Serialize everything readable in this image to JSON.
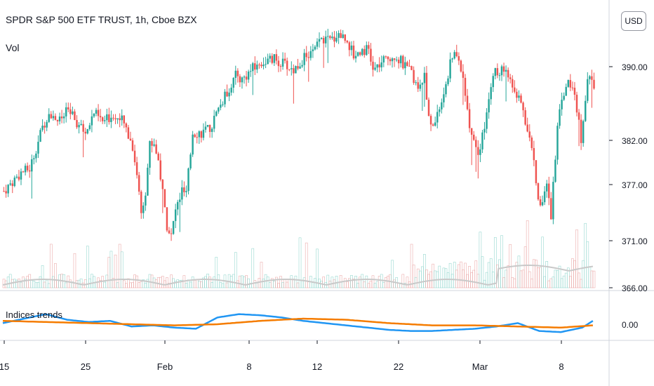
{
  "header": {
    "title": "SPDR S&P 500 ETF TRUST, 1h, Cboe BZX",
    "volume_label": "Vol",
    "indicator_label": "Indices trends",
    "currency": "USD"
  },
  "colors": {
    "up": "#26a69a",
    "down": "#ef5350",
    "trend_blue": "#2196f3",
    "trend_orange": "#f57c00",
    "grey_line": "#c9c9c9",
    "grid": "#e6e6e6"
  },
  "chart_data": [
    {
      "type": "candlestick",
      "price_axis": {
        "ticks": [
          "390.00",
          "382.00",
          "377.00",
          "371.00",
          "366.00"
        ],
        "ylim": [
          366,
          394.5
        ]
      },
      "x_axis": {
        "ticks": [
          "15",
          "25",
          "Feb",
          "8",
          "12",
          "22",
          "Mar",
          "8"
        ]
      },
      "close_path": [
        [
          0,
          376.5
        ],
        [
          8,
          378.5
        ],
        [
          12,
          378.9
        ],
        [
          18,
          383.4
        ],
        [
          21,
          385.1
        ],
        [
          26,
          384.1
        ],
        [
          30,
          385.3
        ],
        [
          34,
          383.8
        ],
        [
          38,
          382.8
        ],
        [
          42,
          385.0
        ],
        [
          46,
          384.0
        ],
        [
          51,
          384.8
        ],
        [
          55,
          384.1
        ],
        [
          57,
          383.3
        ],
        [
          60,
          381.3
        ],
        [
          62,
          378.4
        ],
        [
          64,
          374.2
        ],
        [
          66,
          376.6
        ],
        [
          68,
          381.6
        ],
        [
          70,
          381.7
        ],
        [
          72,
          379.8
        ],
        [
          74,
          376.3
        ],
        [
          76,
          372.8
        ],
        [
          78,
          371.6
        ],
        [
          80,
          374.4
        ],
        [
          83,
          376.5
        ],
        [
          85,
          376.1
        ],
        [
          88,
          382.9
        ],
        [
          92,
          382.8
        ],
        [
          96,
          383.2
        ],
        [
          100,
          385.4
        ],
        [
          104,
          387.2
        ],
        [
          108,
          389.0
        ],
        [
          111,
          388.6
        ],
        [
          116,
          389.8
        ],
        [
          121,
          390.5
        ],
        [
          126,
          390.8
        ],
        [
          131,
          390.2
        ],
        [
          135,
          389.6
        ],
        [
          140,
          391.0
        ],
        [
          144,
          391.5
        ],
        [
          148,
          393.0
        ],
        [
          152,
          392.8
        ],
        [
          156,
          393.6
        ],
        [
          160,
          392.9
        ],
        [
          163,
          391.2
        ],
        [
          167,
          391.9
        ],
        [
          170,
          391.8
        ],
        [
          172,
          389.5
        ],
        [
          175,
          390.2
        ],
        [
          179,
          390.9
        ],
        [
          182,
          391.3
        ],
        [
          185,
          390.6
        ],
        [
          187,
          389.9
        ],
        [
          190,
          389.3
        ],
        [
          193,
          387.4
        ],
        [
          196,
          388.9
        ],
        [
          198,
          384.2
        ],
        [
          200,
          383.8
        ],
        [
          202,
          384.7
        ],
        [
          205,
          387.1
        ],
        [
          208,
          390.2
        ],
        [
          210,
          391.6
        ],
        [
          212,
          390.8
        ],
        [
          215,
          387.4
        ],
        [
          217,
          383.1
        ],
        [
          219,
          382.4
        ],
        [
          221,
          380.6
        ],
        [
          223,
          382.5
        ],
        [
          225,
          384.8
        ],
        [
          227,
          387.6
        ],
        [
          229,
          389.5
        ],
        [
          231,
          389.0
        ],
        [
          233,
          390.0
        ],
        [
          235,
          388.5
        ],
        [
          237,
          387.9
        ],
        [
          240,
          386.4
        ],
        [
          243,
          384.2
        ],
        [
          245,
          382.0
        ],
        [
          247,
          379.7
        ],
        [
          249,
          376.0
        ],
        [
          251,
          374.9
        ],
        [
          253,
          377.4
        ],
        [
          255,
          373.8
        ],
        [
          258,
          383.8
        ],
        [
          260,
          386.9
        ],
        [
          263,
          388.3
        ],
        [
          265,
          387.6
        ],
        [
          267,
          385.6
        ],
        [
          269,
          382.3
        ],
        [
          272,
          388.9
        ],
        [
          274,
          389.1
        ],
        [
          275,
          387.9
        ]
      ],
      "volume_axis_note": "volume histogram scaled independently"
    },
    {
      "type": "line",
      "name": "Indices trends",
      "y_axis": {
        "ticks": [
          "0.00"
        ]
      },
      "series": [
        {
          "color": "blue",
          "points": [
            [
              0,
              0.1
            ],
            [
              10,
              0.5
            ],
            [
              20,
              0.9
            ],
            [
              30,
              0.4
            ],
            [
              40,
              0.2
            ],
            [
              50,
              0.3
            ],
            [
              60,
              -0.2
            ],
            [
              70,
              -0.1
            ],
            [
              80,
              -0.3
            ],
            [
              90,
              -0.4
            ],
            [
              100,
              0.6
            ],
            [
              110,
              0.9
            ],
            [
              120,
              0.8
            ],
            [
              130,
              0.6
            ],
            [
              140,
              0.3
            ],
            [
              150,
              0.1
            ],
            [
              160,
              -0.1
            ],
            [
              170,
              -0.3
            ],
            [
              180,
              -0.5
            ],
            [
              190,
              -0.6
            ],
            [
              200,
              -0.6
            ],
            [
              210,
              -0.5
            ],
            [
              220,
              -0.4
            ],
            [
              230,
              -0.2
            ],
            [
              240,
              0.1
            ],
            [
              250,
              -0.6
            ],
            [
              260,
              -0.7
            ],
            [
              270,
              -0.3
            ],
            [
              275,
              0.3
            ]
          ]
        },
        {
          "color": "orange",
          "points": [
            [
              0,
              0.3
            ],
            [
              40,
              0.1
            ],
            [
              80,
              -0.1
            ],
            [
              100,
              0.0
            ],
            [
              120,
              0.3
            ],
            [
              140,
              0.5
            ],
            [
              160,
              0.4
            ],
            [
              180,
              0.1
            ],
            [
              200,
              -0.1
            ],
            [
              220,
              -0.1
            ],
            [
              240,
              -0.2
            ],
            [
              260,
              -0.3
            ],
            [
              275,
              -0.1
            ]
          ]
        }
      ]
    }
  ]
}
